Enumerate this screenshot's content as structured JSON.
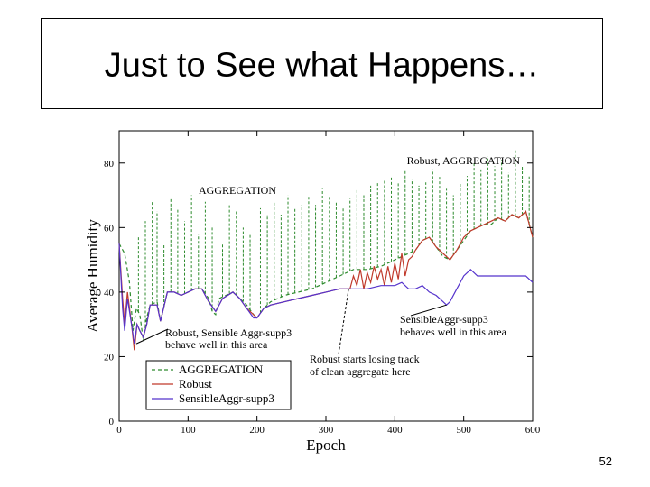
{
  "slide": {
    "title": "Just to See what Happens…",
    "page_number": "52"
  },
  "chart_data": {
    "type": "line",
    "xlabel": "Epoch",
    "ylabel": "Average Humidity",
    "xlim": [
      0,
      600
    ],
    "ylim": [
      0,
      90
    ],
    "x_ticks": [
      0,
      100,
      200,
      300,
      400,
      500,
      600
    ],
    "y_ticks": [
      0,
      20,
      40,
      60,
      80
    ],
    "grid": false,
    "legend_position": "bottom-left",
    "series": [
      {
        "name": "AGGREGATION",
        "color": "#2e8b2e",
        "style": "dashed",
        "points": [
          [
            0,
            55
          ],
          [
            8,
            52
          ],
          [
            15,
            43
          ],
          [
            20,
            28
          ],
          [
            25,
            35
          ],
          [
            30,
            33
          ],
          [
            35,
            25
          ],
          [
            40,
            32
          ],
          [
            45,
            36
          ],
          [
            55,
            37
          ],
          [
            60,
            31
          ],
          [
            70,
            40
          ],
          [
            80,
            40
          ],
          [
            90,
            39
          ],
          [
            100,
            40
          ],
          [
            110,
            41
          ],
          [
            120,
            41
          ],
          [
            130,
            38
          ],
          [
            135,
            34
          ],
          [
            140,
            33
          ],
          [
            145,
            38
          ],
          [
            155,
            39
          ],
          [
            165,
            40
          ],
          [
            175,
            38
          ],
          [
            185,
            36
          ],
          [
            195,
            33
          ],
          [
            200,
            32
          ],
          [
            210,
            35
          ],
          [
            220,
            37
          ],
          [
            240,
            39
          ],
          [
            260,
            40
          ],
          [
            280,
            41
          ],
          [
            300,
            43
          ],
          [
            320,
            45
          ],
          [
            340,
            47
          ],
          [
            360,
            47
          ],
          [
            380,
            48
          ],
          [
            390,
            49
          ],
          [
            400,
            50
          ],
          [
            410,
            51
          ],
          [
            420,
            52
          ],
          [
            430,
            53
          ],
          [
            440,
            56
          ],
          [
            450,
            57
          ],
          [
            460,
            54
          ],
          [
            470,
            51
          ],
          [
            480,
            50
          ],
          [
            490,
            53
          ],
          [
            500,
            56
          ],
          [
            510,
            59
          ],
          [
            520,
            60
          ],
          [
            530,
            61
          ],
          [
            540,
            61
          ],
          [
            550,
            63
          ],
          [
            560,
            62
          ],
          [
            570,
            64
          ],
          [
            580,
            63
          ],
          [
            590,
            65
          ],
          [
            600,
            57
          ]
        ],
        "spikes": [
          [
            28,
            57
          ],
          [
            38,
            62
          ],
          [
            48,
            68
          ],
          [
            55,
            65
          ],
          [
            65,
            55
          ],
          [
            75,
            69
          ],
          [
            85,
            66
          ],
          [
            95,
            62
          ],
          [
            105,
            70
          ],
          [
            115,
            58
          ],
          [
            125,
            68
          ],
          [
            135,
            60
          ],
          [
            150,
            55
          ],
          [
            160,
            67
          ],
          [
            170,
            65
          ],
          [
            180,
            60
          ],
          [
            190,
            58
          ],
          [
            205,
            66
          ],
          [
            215,
            64
          ],
          [
            225,
            68
          ],
          [
            235,
            64
          ],
          [
            245,
            70
          ],
          [
            255,
            66
          ],
          [
            265,
            67
          ],
          [
            275,
            70
          ],
          [
            285,
            67
          ],
          [
            295,
            72
          ],
          [
            305,
            70
          ],
          [
            315,
            68
          ],
          [
            325,
            66
          ],
          [
            335,
            69
          ],
          [
            345,
            72
          ],
          [
            355,
            70
          ],
          [
            365,
            73
          ],
          [
            375,
            74
          ],
          [
            385,
            75
          ],
          [
            395,
            76
          ],
          [
            405,
            74
          ],
          [
            415,
            78
          ],
          [
            425,
            75
          ],
          [
            435,
            73
          ],
          [
            445,
            74
          ],
          [
            455,
            78
          ],
          [
            465,
            76
          ],
          [
            475,
            72
          ],
          [
            485,
            70
          ],
          [
            495,
            74
          ],
          [
            505,
            76
          ],
          [
            515,
            80
          ],
          [
            525,
            78
          ],
          [
            535,
            82
          ],
          [
            545,
            79
          ],
          [
            555,
            81
          ],
          [
            565,
            77
          ],
          [
            575,
            84
          ],
          [
            585,
            79
          ],
          [
            595,
            76
          ]
        ]
      },
      {
        "name": "Robust",
        "color": "#c0392b",
        "style": "solid",
        "points": [
          [
            0,
            55
          ],
          [
            5,
            38
          ],
          [
            8,
            30
          ],
          [
            12,
            40
          ],
          [
            18,
            30
          ],
          [
            22,
            22
          ],
          [
            26,
            30
          ],
          [
            30,
            28
          ],
          [
            35,
            26
          ],
          [
            40,
            30
          ],
          [
            45,
            36
          ],
          [
            55,
            36
          ],
          [
            60,
            31
          ],
          [
            70,
            40
          ],
          [
            80,
            40
          ],
          [
            90,
            39
          ],
          [
            100,
            40
          ],
          [
            110,
            41
          ],
          [
            120,
            41
          ],
          [
            130,
            37
          ],
          [
            140,
            34
          ],
          [
            150,
            38
          ],
          [
            165,
            40
          ],
          [
            175,
            38
          ],
          [
            185,
            35
          ],
          [
            195,
            33
          ],
          [
            200,
            32
          ],
          [
            210,
            35
          ],
          [
            220,
            36
          ],
          [
            240,
            37
          ],
          [
            260,
            38
          ],
          [
            280,
            39
          ],
          [
            300,
            40
          ],
          [
            320,
            41
          ],
          [
            335,
            41
          ],
          [
            340,
            45
          ],
          [
            345,
            42
          ],
          [
            350,
            47
          ],
          [
            355,
            41
          ],
          [
            360,
            46
          ],
          [
            365,
            43
          ],
          [
            370,
            48
          ],
          [
            375,
            44
          ],
          [
            380,
            47
          ],
          [
            385,
            42
          ],
          [
            390,
            48
          ],
          [
            395,
            43
          ],
          [
            400,
            49
          ],
          [
            405,
            44
          ],
          [
            410,
            52
          ],
          [
            415,
            45
          ],
          [
            420,
            50
          ],
          [
            425,
            51
          ],
          [
            430,
            53
          ],
          [
            440,
            56
          ],
          [
            450,
            57
          ],
          [
            460,
            54
          ],
          [
            470,
            52
          ],
          [
            480,
            50
          ],
          [
            490,
            53
          ],
          [
            500,
            57
          ],
          [
            510,
            59
          ],
          [
            520,
            60
          ],
          [
            530,
            61
          ],
          [
            540,
            62
          ],
          [
            550,
            63
          ],
          [
            560,
            62
          ],
          [
            570,
            64
          ],
          [
            580,
            63
          ],
          [
            590,
            65
          ],
          [
            600,
            57
          ]
        ]
      },
      {
        "name": "SensibleAggr-supp3",
        "color": "#5533cc",
        "style": "solid",
        "points": [
          [
            0,
            55
          ],
          [
            5,
            35
          ],
          [
            8,
            28
          ],
          [
            12,
            38
          ],
          [
            18,
            30
          ],
          [
            22,
            24
          ],
          [
            26,
            30
          ],
          [
            30,
            28
          ],
          [
            35,
            26
          ],
          [
            40,
            30
          ],
          [
            45,
            36
          ],
          [
            55,
            36
          ],
          [
            60,
            31
          ],
          [
            70,
            40
          ],
          [
            80,
            40
          ],
          [
            90,
            39
          ],
          [
            100,
            40
          ],
          [
            110,
            41
          ],
          [
            120,
            41
          ],
          [
            130,
            37
          ],
          [
            140,
            34
          ],
          [
            150,
            38
          ],
          [
            165,
            40
          ],
          [
            175,
            38
          ],
          [
            185,
            35
          ],
          [
            195,
            32
          ],
          [
            200,
            32
          ],
          [
            210,
            35
          ],
          [
            220,
            36
          ],
          [
            240,
            37
          ],
          [
            260,
            38
          ],
          [
            280,
            39
          ],
          [
            300,
            40
          ],
          [
            320,
            41
          ],
          [
            340,
            41
          ],
          [
            360,
            41
          ],
          [
            380,
            42
          ],
          [
            400,
            42
          ],
          [
            410,
            43
          ],
          [
            420,
            41
          ],
          [
            430,
            41
          ],
          [
            440,
            42
          ],
          [
            450,
            40
          ],
          [
            460,
            39
          ],
          [
            470,
            37
          ],
          [
            475,
            36
          ],
          [
            480,
            37
          ],
          [
            490,
            41
          ],
          [
            500,
            45
          ],
          [
            510,
            47
          ],
          [
            520,
            45
          ],
          [
            530,
            45
          ],
          [
            540,
            45
          ],
          [
            560,
            45
          ],
          [
            580,
            45
          ],
          [
            590,
            45
          ],
          [
            600,
            43
          ]
        ]
      }
    ],
    "annotations": {
      "agg_top_right": "Robust, AGGREGATION",
      "agg_top_left": "AGGREGATION",
      "left_note_1": "Robust, Sensible Aggr-supp3",
      "left_note_2": "behave well in this area",
      "right_note_1": "SensibleAggr-supp3",
      "right_note_2": "behaves well in this area",
      "mid_note_1": "Robust starts losing track",
      "mid_note_2": "of clean aggregate here"
    },
    "legend": [
      "AGGREGATION",
      "Robust",
      "SensibleAggr-supp3"
    ]
  }
}
